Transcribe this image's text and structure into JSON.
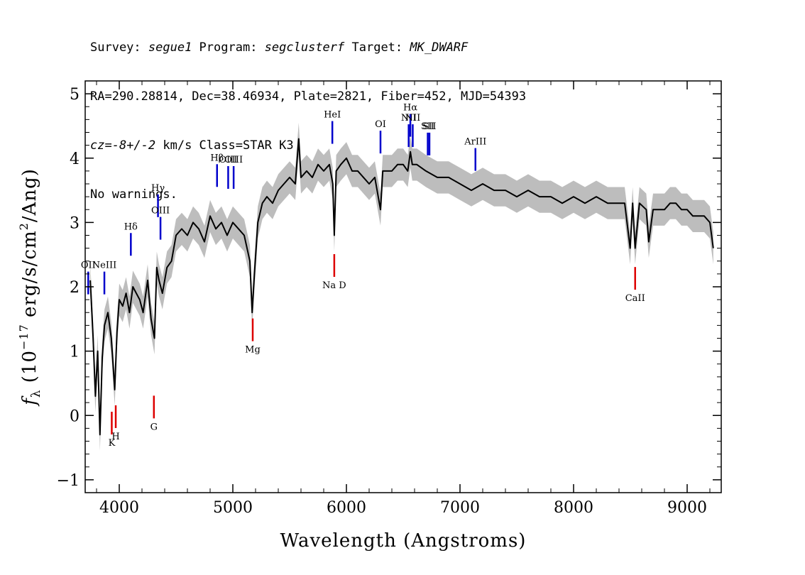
{
  "header": {
    "line1": {
      "survey_label": "Survey: ",
      "survey": "segue1",
      "program_label": " Program: ",
      "program": "segclusterf",
      "target_label": " Target: ",
      "target": "MK_DWARF"
    },
    "line2": "RA=290.28814, Dec=38.46934, Plate=2821, Fiber=452, MJD=54393",
    "line3": {
      "cz_label": "cz",
      "cz_value": "=-8+/-2",
      "rest": " km/s Class=STAR K3"
    },
    "line4": "No warnings."
  },
  "colors": {
    "spectrum": "#000000",
    "error": "#bdbdbd",
    "emission_line": "#0000cc",
    "absorption_line": "#dd0000",
    "frame": "#000000"
  },
  "chart_data": {
    "type": "line",
    "xlabel": "Wavelength (Angstroms)",
    "ylabel_parts": {
      "f": "f",
      "sub": "λ",
      "open": " (10",
      "exp": "−17",
      "rest": " erg/s/cm",
      "exp2": "2",
      "tail": "/Ang)"
    },
    "xlim": [
      3700,
      9300
    ],
    "ylim": [
      -1.2,
      5.2
    ],
    "xticks": [
      4000,
      5000,
      6000,
      7000,
      8000,
      9000
    ],
    "xtick_labels": [
      "4000",
      "5000",
      "6000",
      "7000",
      "8000",
      "9000"
    ],
    "yticks": [
      -1,
      0,
      1,
      2,
      3,
      4,
      5
    ],
    "ytick_labels": [
      "−1",
      "0",
      "1",
      "2",
      "3",
      "4",
      "5"
    ],
    "spectrum": {
      "x": [
        3745,
        3770,
        3790,
        3810,
        3830,
        3850,
        3870,
        3900,
        3930,
        3960,
        3980,
        4000,
        4030,
        4060,
        4090,
        4120,
        4150,
        4180,
        4210,
        4250,
        4280,
        4310,
        4330,
        4350,
        4380,
        4420,
        4460,
        4500,
        4550,
        4600,
        4650,
        4700,
        4750,
        4800,
        4850,
        4900,
        4950,
        5000,
        5050,
        5100,
        5150,
        5170,
        5190,
        5220,
        5260,
        5300,
        5350,
        5400,
        5450,
        5500,
        5550,
        5580,
        5600,
        5650,
        5700,
        5750,
        5800,
        5850,
        5880,
        5893,
        5910,
        5950,
        6000,
        6050,
        6100,
        6150,
        6200,
        6250,
        6300,
        6320,
        6350,
        6400,
        6450,
        6500,
        6540,
        6563,
        6580,
        6620,
        6700,
        6800,
        6900,
        7000,
        7100,
        7200,
        7300,
        7400,
        7500,
        7600,
        7700,
        7800,
        7900,
        8000,
        8100,
        8200,
        8300,
        8400,
        8450,
        8498,
        8520,
        8542,
        8580,
        8640,
        8662,
        8700,
        8750,
        8800,
        8850,
        8900,
        8950,
        9000,
        9050,
        9100,
        9150,
        9200,
        9230
      ],
      "y": [
        2.1,
        1.2,
        0.3,
        1.0,
        -0.3,
        0.9,
        1.4,
        1.6,
        1.2,
        0.4,
        1.3,
        1.8,
        1.7,
        1.9,
        1.6,
        2.0,
        1.9,
        1.8,
        1.6,
        2.1,
        1.5,
        1.2,
        2.3,
        2.1,
        1.9,
        2.3,
        2.4,
        2.8,
        2.9,
        2.8,
        3.0,
        2.9,
        2.7,
        3.1,
        2.9,
        3.0,
        2.8,
        3.0,
        2.9,
        2.8,
        2.4,
        1.6,
        2.2,
        3.0,
        3.3,
        3.4,
        3.3,
        3.5,
        3.6,
        3.7,
        3.6,
        4.3,
        3.7,
        3.8,
        3.7,
        3.9,
        3.8,
        3.9,
        3.6,
        2.8,
        3.8,
        3.9,
        4.0,
        3.8,
        3.8,
        3.7,
        3.6,
        3.7,
        3.2,
        3.8,
        3.8,
        3.8,
        3.9,
        3.9,
        3.8,
        4.1,
        3.9,
        3.9,
        3.8,
        3.7,
        3.7,
        3.6,
        3.5,
        3.6,
        3.5,
        3.5,
        3.4,
        3.5,
        3.4,
        3.4,
        3.3,
        3.4,
        3.3,
        3.4,
        3.3,
        3.3,
        3.3,
        2.6,
        3.3,
        2.6,
        3.3,
        3.2,
        2.7,
        3.2,
        3.2,
        3.2,
        3.3,
        3.3,
        3.2,
        3.2,
        3.1,
        3.1,
        3.1,
        3.0,
        2.6
      ],
      "error_band": 0.25
    },
    "emission_lines": [
      {
        "name": "HeI",
        "x": 5876,
        "label_y": 4.62
      },
      {
        "name": "OI",
        "x": 6300,
        "label_y": 4.47
      },
      {
        "name": "NII",
        "x": 6548,
        "label_y": 4.57
      },
      {
        "name": "Hα",
        "x": 6563,
        "label_y": 4.73
      },
      {
        "name": "NII",
        "x": 6584,
        "label_y": 4.57
      },
      {
        "name": "SII",
        "x": 6716,
        "label_y": 4.44
      },
      {
        "name": "SII",
        "x": 6731,
        "label_y": 4.44
      },
      {
        "name": "ArIII",
        "x": 7136,
        "label_y": 4.2
      },
      {
        "name": "Hβ",
        "x": 4861,
        "label_y": 3.95
      },
      {
        "name": "OIII",
        "x": 4959,
        "label_y": 3.92
      },
      {
        "name": "OIII",
        "x": 5007,
        "label_y": 3.92
      },
      {
        "name": "Hγ",
        "x": 4341,
        "label_y": 3.48
      },
      {
        "name": "OIII",
        "x": 4363,
        "label_y": 3.13
      },
      {
        "name": "Hδ",
        "x": 4102,
        "label_y": 2.88
      },
      {
        "name": "NeIII",
        "x": 3869,
        "label_y": 2.28
      },
      {
        "name": "OII",
        "x": 3727,
        "label_y": 2.28
      }
    ],
    "absorption_lines": [
      {
        "name": "K",
        "x": 3934,
        "label_y": -0.45
      },
      {
        "name": "H",
        "x": 3969,
        "label_y": -0.35
      },
      {
        "name": "G",
        "x": 4305,
        "label_y": -0.2
      },
      {
        "name": "Mg",
        "x": 5175,
        "label_y": 1.0
      },
      {
        "name": "Na D",
        "x": 5893,
        "label_y": 2.0
      },
      {
        "name": "CaII",
        "x": 8542,
        "label_y": 1.8
      }
    ]
  }
}
